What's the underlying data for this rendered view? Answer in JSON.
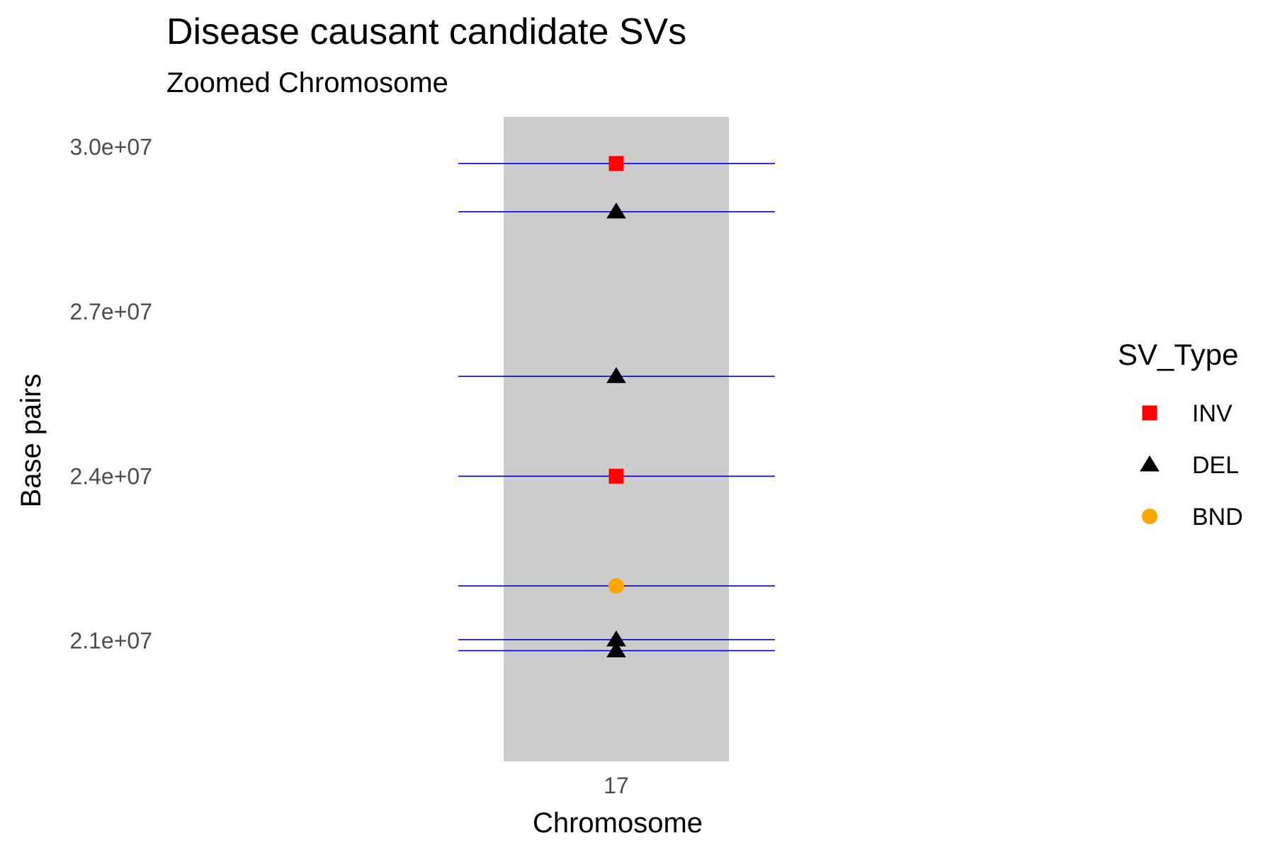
{
  "chart_data": {
    "type": "scatter",
    "title": "Disease causant candidate SVs",
    "subtitle": "Zoomed Chromosome",
    "xlabel": "Chromosome",
    "ylabel": "Base pairs",
    "categories": [
      "17"
    ],
    "ylim": [
      18800000,
      30550000
    ],
    "yticks": [
      21000000,
      24000000,
      27000000,
      30000000
    ],
    "ytick_labels": [
      "2.1e+07",
      "2.4e+07",
      "2.7e+07",
      "3.0e+07"
    ],
    "grid": false,
    "legend": {
      "title": "SV_Type",
      "position": "right",
      "entries": [
        {
          "label": "INV",
          "color": "#ff0000",
          "shape": "square"
        },
        {
          "label": "DEL",
          "color": "#000000",
          "shape": "triangle"
        },
        {
          "label": "BND",
          "color": "#ffa500",
          "shape": "circle"
        }
      ]
    },
    "chromosome_band": {
      "category": "17",
      "color": "#cccccc"
    },
    "line_color": "#0000cd",
    "points": [
      {
        "x": "17",
        "y": 29700000,
        "type": "INV"
      },
      {
        "x": "17",
        "y": 28820000,
        "type": "DEL"
      },
      {
        "x": "17",
        "y": 25820000,
        "type": "DEL"
      },
      {
        "x": "17",
        "y": 24000000,
        "type": "INV"
      },
      {
        "x": "17",
        "y": 22000000,
        "type": "BND"
      },
      {
        "x": "17",
        "y": 21020000,
        "type": "DEL"
      },
      {
        "x": "17",
        "y": 20820000,
        "type": "DEL"
      }
    ]
  }
}
